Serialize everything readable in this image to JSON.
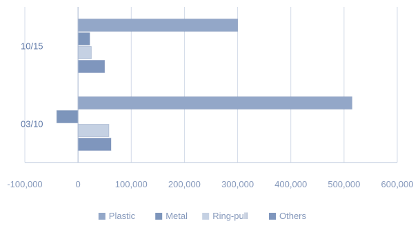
{
  "chart_data": {
    "type": "bar",
    "orientation": "horizontal",
    "categories": [
      "10/15",
      "03/10"
    ],
    "series": [
      {
        "name": "Plastic",
        "color": "#93a7c8",
        "values": [
          300000,
          515000
        ]
      },
      {
        "name": "Metal",
        "color": "#7d95bb",
        "values": [
          22000,
          -40000
        ]
      },
      {
        "name": "Ring-pull",
        "color": "#c5d1e3",
        "values": [
          25000,
          58000
        ]
      },
      {
        "name": "Others",
        "color": "#7f96bd",
        "values": [
          50000,
          62000
        ]
      }
    ],
    "xlim": [
      -100000,
      600000
    ],
    "xticks": [
      -100000,
      0,
      100000,
      200000,
      300000,
      400000,
      500000,
      600000
    ],
    "xtick_labels": [
      "-100,000",
      "0",
      "100,000",
      "200,000",
      "300,000",
      "400,000",
      "500,000",
      "600,000"
    ],
    "grid": "vertical",
    "legend_position": "bottom",
    "title": "",
    "xlabel": "",
    "ylabel": ""
  }
}
